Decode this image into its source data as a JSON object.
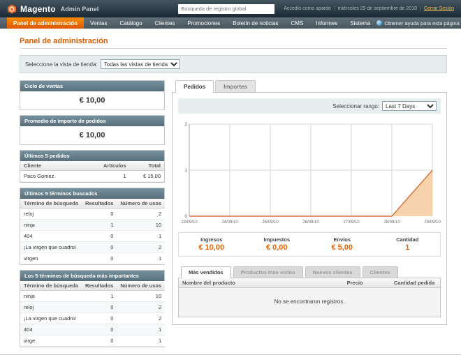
{
  "header": {
    "logo_text": "Magento",
    "logo_subtext": "Admin Panel",
    "search_placeholder": "Búsqueda de registro global",
    "logged_in_as": "Accedió como apardo",
    "date": "miércoles 29 de septiembre de 2010",
    "logout_label": "Cerrar Sesión"
  },
  "nav": {
    "items": [
      {
        "label": "Panel de administración",
        "active": true
      },
      {
        "label": "Ventas"
      },
      {
        "label": "Catálogo"
      },
      {
        "label": "Clientes"
      },
      {
        "label": "Promociones"
      },
      {
        "label": "Boletín de noticias"
      },
      {
        "label": "CMS"
      },
      {
        "label": "Informes"
      },
      {
        "label": "Sistema"
      }
    ],
    "help_label": "Obtener ayuda para esta página"
  },
  "page": {
    "title": "Panel de administración",
    "store_view_label": "Seleccione la vista de tienda:",
    "store_view_value": "Todas las vistas de tienda"
  },
  "left": {
    "lifetime_sales": {
      "title": "Ciclo de ventas",
      "value": "€ 10,00"
    },
    "average_orders": {
      "title": "Promedio de importe de pedidos",
      "value": "€ 10,00"
    },
    "last_orders": {
      "title": "Últimos 5 pedidos",
      "headers": [
        "Cliente",
        "Artículos",
        "Total"
      ],
      "rows": [
        [
          "Paco Gomez",
          "1",
          "€ 15,00"
        ]
      ]
    },
    "last_search": {
      "title": "Últimos 5 términos buscados",
      "headers": [
        "Término de búsqueda",
        "Resultados",
        "Número de usos"
      ],
      "rows": [
        [
          "reloj",
          "0",
          "2"
        ],
        [
          "ninja",
          "1",
          "10"
        ],
        [
          "404",
          "0",
          "1"
        ],
        [
          "¡La virgen que cuadro!",
          "0",
          "2"
        ],
        [
          "virgen",
          "0",
          "1"
        ]
      ]
    },
    "top_search": {
      "title": "Los 5 términos de búsqueda más importantes",
      "headers": [
        "Término de búsqueda",
        "Resultados",
        "Número de usos"
      ],
      "rows": [
        [
          "ninja",
          "1",
          "10"
        ],
        [
          "reloj",
          "0",
          "2"
        ],
        [
          "¡La virgen que cuadro!",
          "0",
          "2"
        ],
        [
          "404",
          "0",
          "1"
        ],
        [
          "virge",
          "0",
          "1"
        ]
      ]
    }
  },
  "dashboard": {
    "tabs": [
      {
        "label": "Pedidos",
        "active": true
      },
      {
        "label": "Importes"
      }
    ],
    "range_label": "Seleccionar rango:",
    "range_value": "Last 7 Days",
    "stats": [
      {
        "label": "Ingresos",
        "value": "€ 10,00"
      },
      {
        "label": "Impuestos",
        "value": "€ 0,00"
      },
      {
        "label": "Envíos",
        "value": "€ 5,00"
      },
      {
        "label": "Cantidad",
        "value": "1"
      }
    ],
    "bottom_tabs": [
      {
        "label": "Más vendidos",
        "active": true
      },
      {
        "label": "Productos más vistos"
      },
      {
        "label": "Nuevos clientes"
      },
      {
        "label": "Clientes"
      }
    ],
    "products_table": {
      "headers": [
        "Nombre del producto",
        "Precio",
        "Cantidad pedida"
      ],
      "empty_message": "No se encontraron registros."
    }
  },
  "chart_data": {
    "type": "area",
    "title": "Pedidos - Last 7 Days",
    "x": [
      "23/09/10",
      "24/09/10",
      "25/09/10",
      "26/09/10",
      "27/09/10",
      "28/09/10",
      "29/09/10"
    ],
    "values": [
      0,
      0,
      0,
      0,
      0,
      0,
      1
    ],
    "ylim": [
      0,
      2
    ],
    "yticks": [
      0,
      1,
      2
    ],
    "grid": true,
    "line_color": "#d4703a",
    "fill_color": "#f6d3ac"
  },
  "colors": {
    "accent_orange": "#e96300",
    "nav_active": "#ee7a00",
    "box_header": "#647e8b",
    "header_bg": "#1b2a35"
  }
}
